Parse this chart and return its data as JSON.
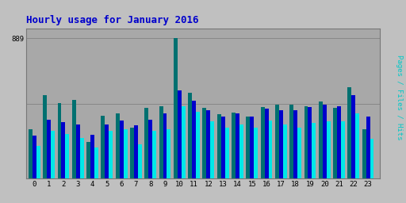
{
  "title": "Hourly usage for January 2016",
  "hours": [
    0,
    1,
    2,
    3,
    4,
    5,
    6,
    7,
    8,
    9,
    10,
    11,
    12,
    13,
    14,
    15,
    16,
    17,
    18,
    19,
    20,
    21,
    22,
    23
  ],
  "pages": [
    310,
    530,
    480,
    500,
    230,
    400,
    415,
    320,
    450,
    460,
    889,
    545,
    450,
    410,
    420,
    395,
    455,
    470,
    470,
    460,
    490,
    450,
    580,
    310
  ],
  "files": [
    270,
    375,
    355,
    340,
    275,
    340,
    365,
    335,
    375,
    415,
    560,
    495,
    435,
    395,
    415,
    395,
    445,
    435,
    435,
    455,
    470,
    460,
    530,
    395
  ],
  "hits": [
    205,
    300,
    280,
    255,
    195,
    300,
    310,
    215,
    300,
    310,
    460,
    425,
    360,
    320,
    340,
    320,
    365,
    340,
    320,
    350,
    360,
    360,
    415,
    250
  ],
  "pages_color": "#007070",
  "files_color": "#0000cc",
  "hits_color": "#00e8e8",
  "background_color": "#c0c0c0",
  "plot_bg_color": "#a8a8a8",
  "grid_color": "#888888",
  "title_color": "#0000cc",
  "ylabel_color": "#00c8c8",
  "ylim_max": 950,
  "ytick_val": 889,
  "bar_width": 0.27
}
